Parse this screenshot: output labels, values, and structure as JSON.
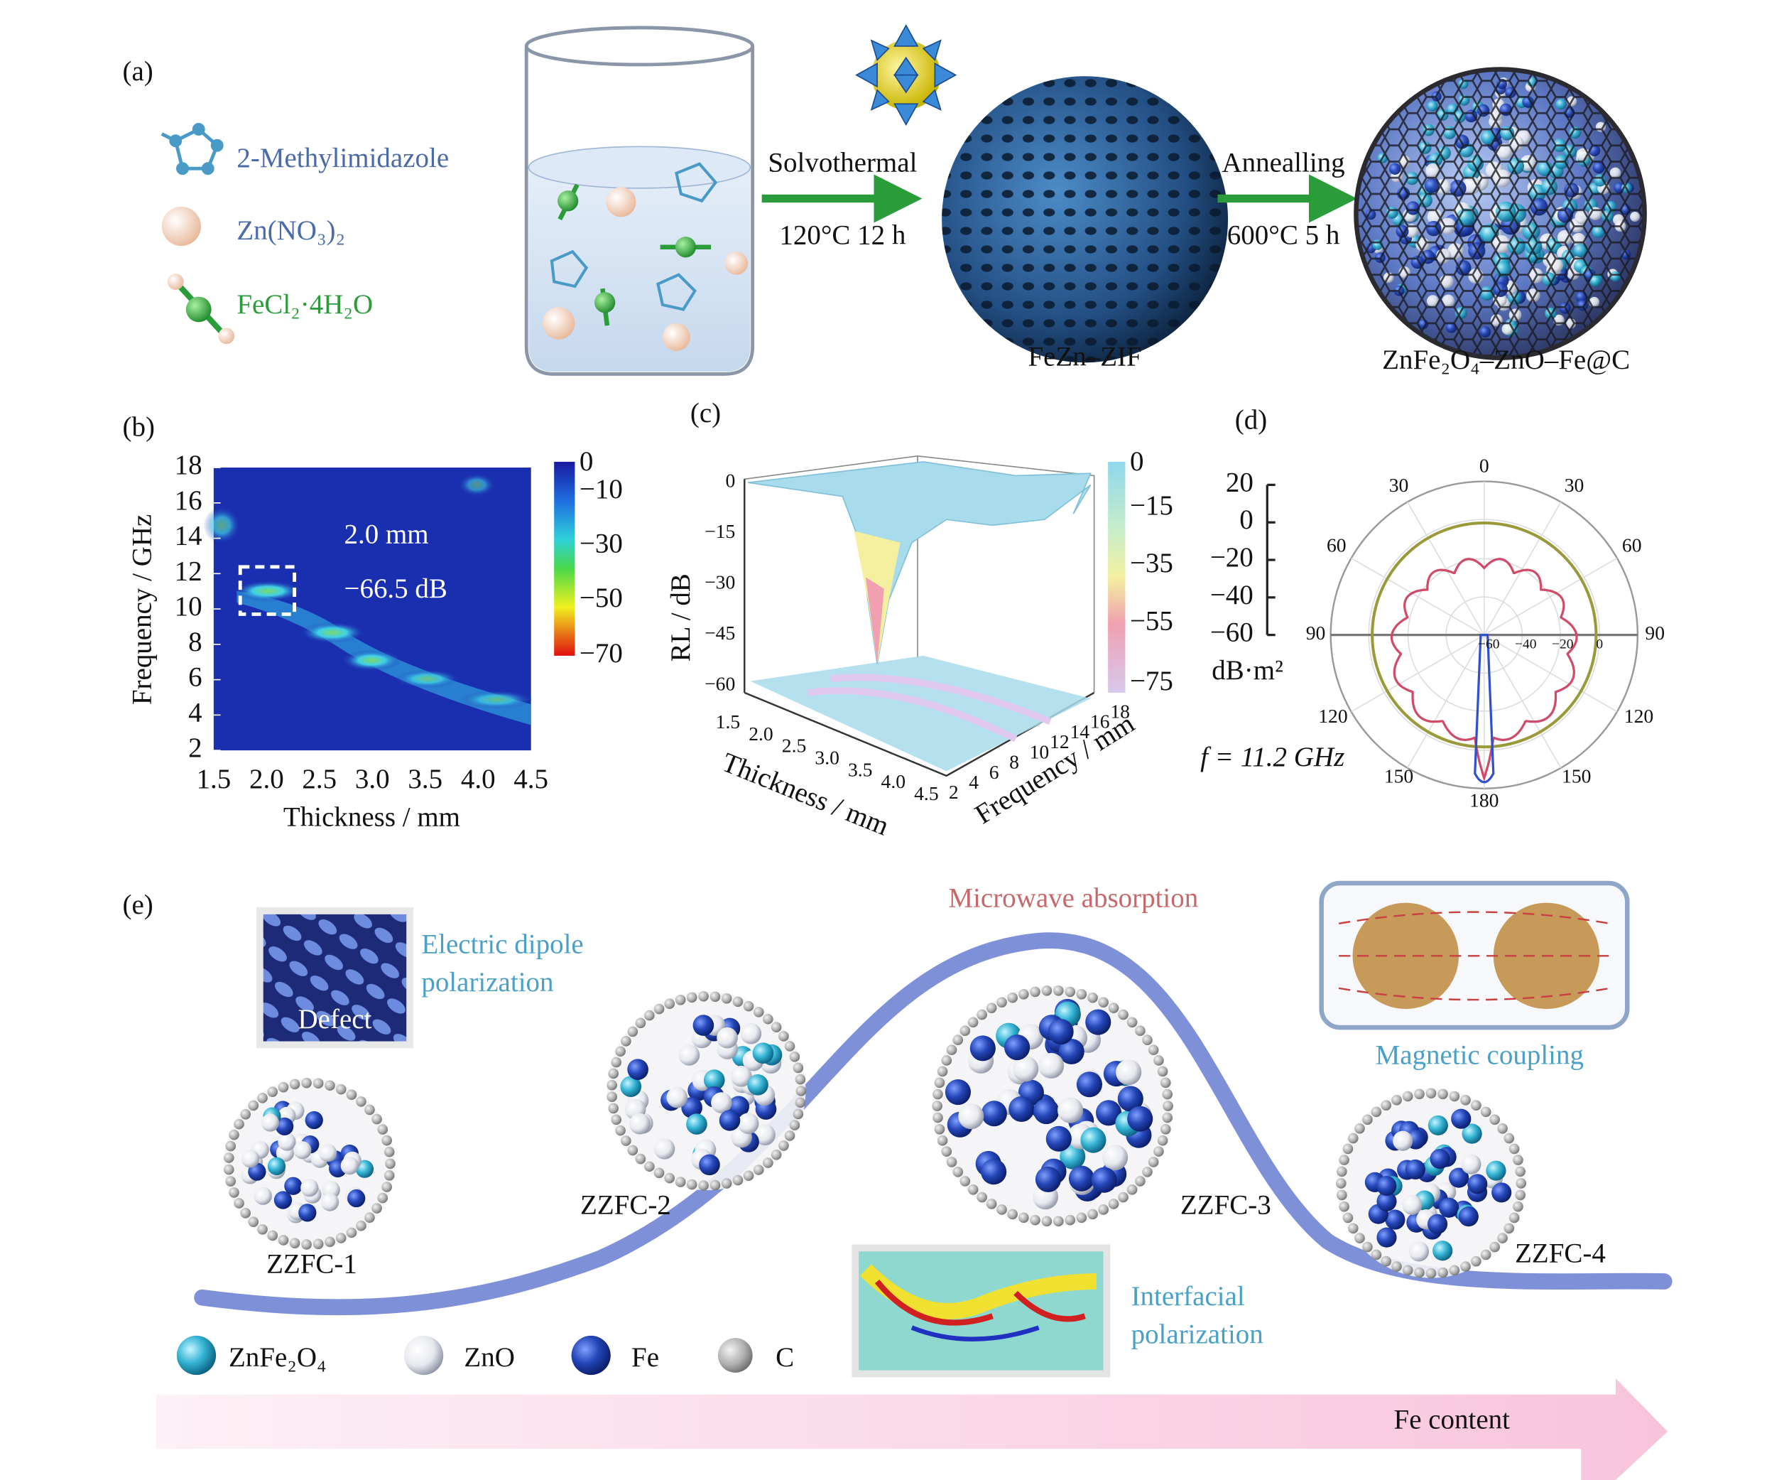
{
  "panel_a": {
    "label": "(a)",
    "legend": [
      "2-Methylimidazole",
      "Zn(NO₃)₂",
      "FeCl₂·4H₂O"
    ],
    "step1": {
      "name": "Solvothermal",
      "condition": "120°C 12 h"
    },
    "intermediate": "FeZn–ZIF",
    "step2": {
      "name": "Annealling",
      "condition": "600°C 5 h"
    },
    "product": "ZnFe₂O₄–ZnO–Fe@C"
  },
  "panel_b": {
    "label": "(b)",
    "y_label": "Frequency / GHz",
    "x_label": "Thickness / mm",
    "yticks": [
      "18",
      "16",
      "14",
      "12",
      "10",
      "8",
      "6",
      "4",
      "2"
    ],
    "xticks": [
      "1.5",
      "2.0",
      "2.5",
      "3.0",
      "3.5",
      "4.0",
      "4.5"
    ],
    "colorbar_ticks": [
      "0",
      "−10",
      "−30",
      "−50",
      "−70"
    ],
    "annotation": [
      "2.0 mm",
      "−66.5 dB"
    ]
  },
  "panel_c": {
    "label": "(c)",
    "z_label": "RL / dB",
    "x_label": "Thickness / mm",
    "y_label": "Frequency / mm",
    "zticks": [
      "0",
      "−15",
      "−30",
      "−45",
      "−60"
    ],
    "xticks": [
      "1.5",
      "2.0",
      "2.5",
      "3.0",
      "3.5",
      "4.0",
      "4.5"
    ],
    "yticks": [
      "2",
      "4",
      "6",
      "8",
      "10",
      "12",
      "14",
      "16",
      "18"
    ],
    "colorbar_ticks": [
      "0",
      "−15",
      "−35",
      "−55",
      "−75"
    ]
  },
  "panel_d": {
    "label": "(d)",
    "scale_ticks": [
      "20",
      "0",
      "−20",
      "−40",
      "−60"
    ],
    "unit": "dB·m²",
    "frequency": "f = 11.2 GHz",
    "angles": [
      "0",
      "30",
      "30",
      "60",
      "60",
      "90",
      "90",
      "120",
      "120",
      "150",
      "150",
      "180"
    ],
    "radial_ticks": [
      "−60",
      "−40",
      "−20",
      "0"
    ]
  },
  "panel_e": {
    "label": "(e)",
    "peak_label": "Microwave absorption",
    "defect_inset": "Defect",
    "dipole": [
      "Electric dipole",
      "polarization"
    ],
    "magnetic": "Magnetic coupling",
    "interfacial": [
      "Interfacial",
      "polarization"
    ],
    "samples": [
      "ZZFC-1",
      "ZZFC-2",
      "ZZFC-3",
      "ZZFC-4"
    ],
    "legend": [
      "ZnFe₂O₄",
      "ZnO",
      "Fe",
      "C"
    ],
    "axis": "Fe content"
  }
}
